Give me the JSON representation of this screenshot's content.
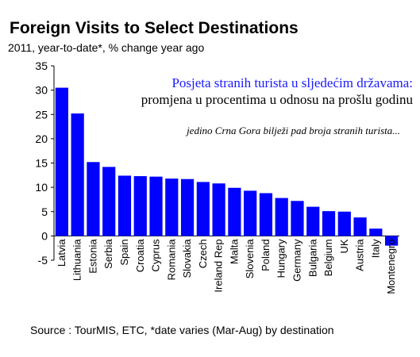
{
  "title": "Foreign Visits to Select Destinations",
  "subtitle": "2011, year-to-date*, % change year ago",
  "source": "Source : TourMIS, ETC, *date varies (Mar-Aug) by destination",
  "annotations": [
    "Posjeta stranih turista u sljedećim državama:",
    "promjena u procentima u odnosu na prošlu godinu",
    "jedino Crna Gora bilježi pad broja stranih turista..."
  ],
  "colors": {
    "bar": "#0000ff",
    "annotation_heading": "#1a1aff"
  },
  "chart_data": {
    "type": "bar",
    "categories": [
      "Latvia",
      "Lithuania",
      "Estonia",
      "Serbia",
      "Spain",
      "Croatia",
      "Cyprus",
      "Romania",
      "Slovakia",
      "Czech",
      "Ireland Rep",
      "Malta",
      "Slovenia",
      "Poland",
      "Hungary",
      "Germany",
      "Bulgaria",
      "Belgium",
      "UK",
      "Austria",
      "Italy",
      "Montenegro"
    ],
    "values": [
      30.5,
      25.2,
      15.2,
      14.2,
      12.4,
      12.3,
      12.2,
      11.8,
      11.7,
      11.1,
      10.8,
      9.9,
      9.3,
      8.8,
      7.8,
      7.2,
      6.0,
      5.1,
      5.0,
      3.8,
      1.5,
      -2.0
    ],
    "ylim": [
      -5,
      35
    ],
    "yticks": [
      -5,
      0,
      5,
      10,
      15,
      20,
      25,
      30,
      35
    ],
    "grid": false,
    "legend": "none"
  }
}
